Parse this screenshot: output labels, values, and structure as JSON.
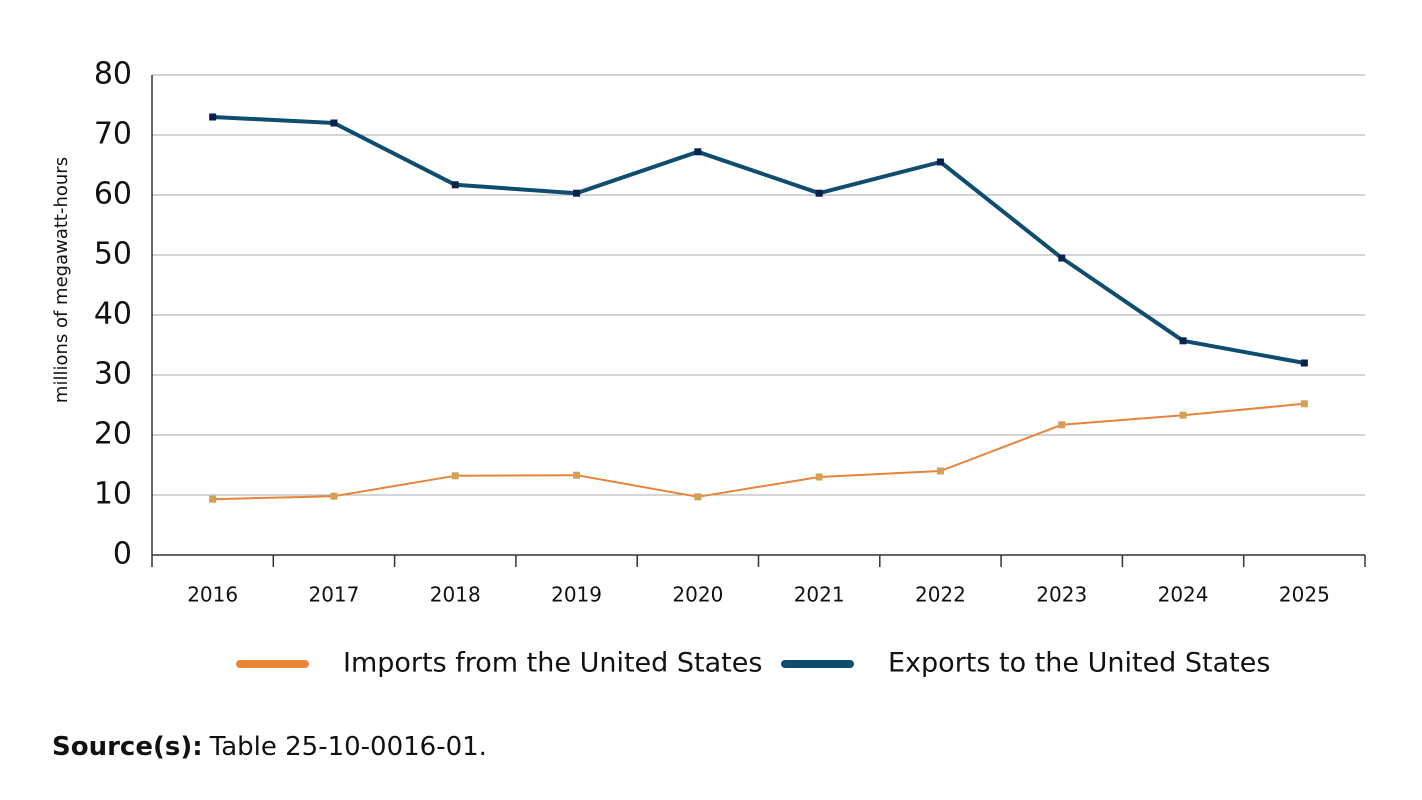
{
  "chart_data": {
    "type": "line",
    "y_label": "millions of megawatt-hours",
    "categories": [
      "2016",
      "2017",
      "2018",
      "2019",
      "2020",
      "2021",
      "2022",
      "2023",
      "2024",
      "2025"
    ],
    "series": [
      {
        "name": "Imports from the United States",
        "color": "#e8833a",
        "marker_color": "#d4a055",
        "values": [
          9.3,
          9.8,
          13.2,
          13.3,
          9.7,
          13.0,
          14.0,
          21.7,
          23.3,
          25.2
        ]
      },
      {
        "name": "Exports to the United States",
        "color": "#0e4d6e",
        "marker_color": "#0a1f4d",
        "values": [
          73.0,
          72.0,
          61.7,
          60.3,
          67.2,
          60.3,
          65.5,
          49.5,
          35.7,
          32.0
        ]
      }
    ],
    "ylim": [
      0,
      80
    ],
    "yticks": [
      0,
      10,
      20,
      30,
      40,
      50,
      60,
      70,
      80
    ],
    "grid": true,
    "legend": "bottom",
    "source": {
      "label": "Source(s):",
      "text": "Table 25-10-0016-01."
    }
  }
}
